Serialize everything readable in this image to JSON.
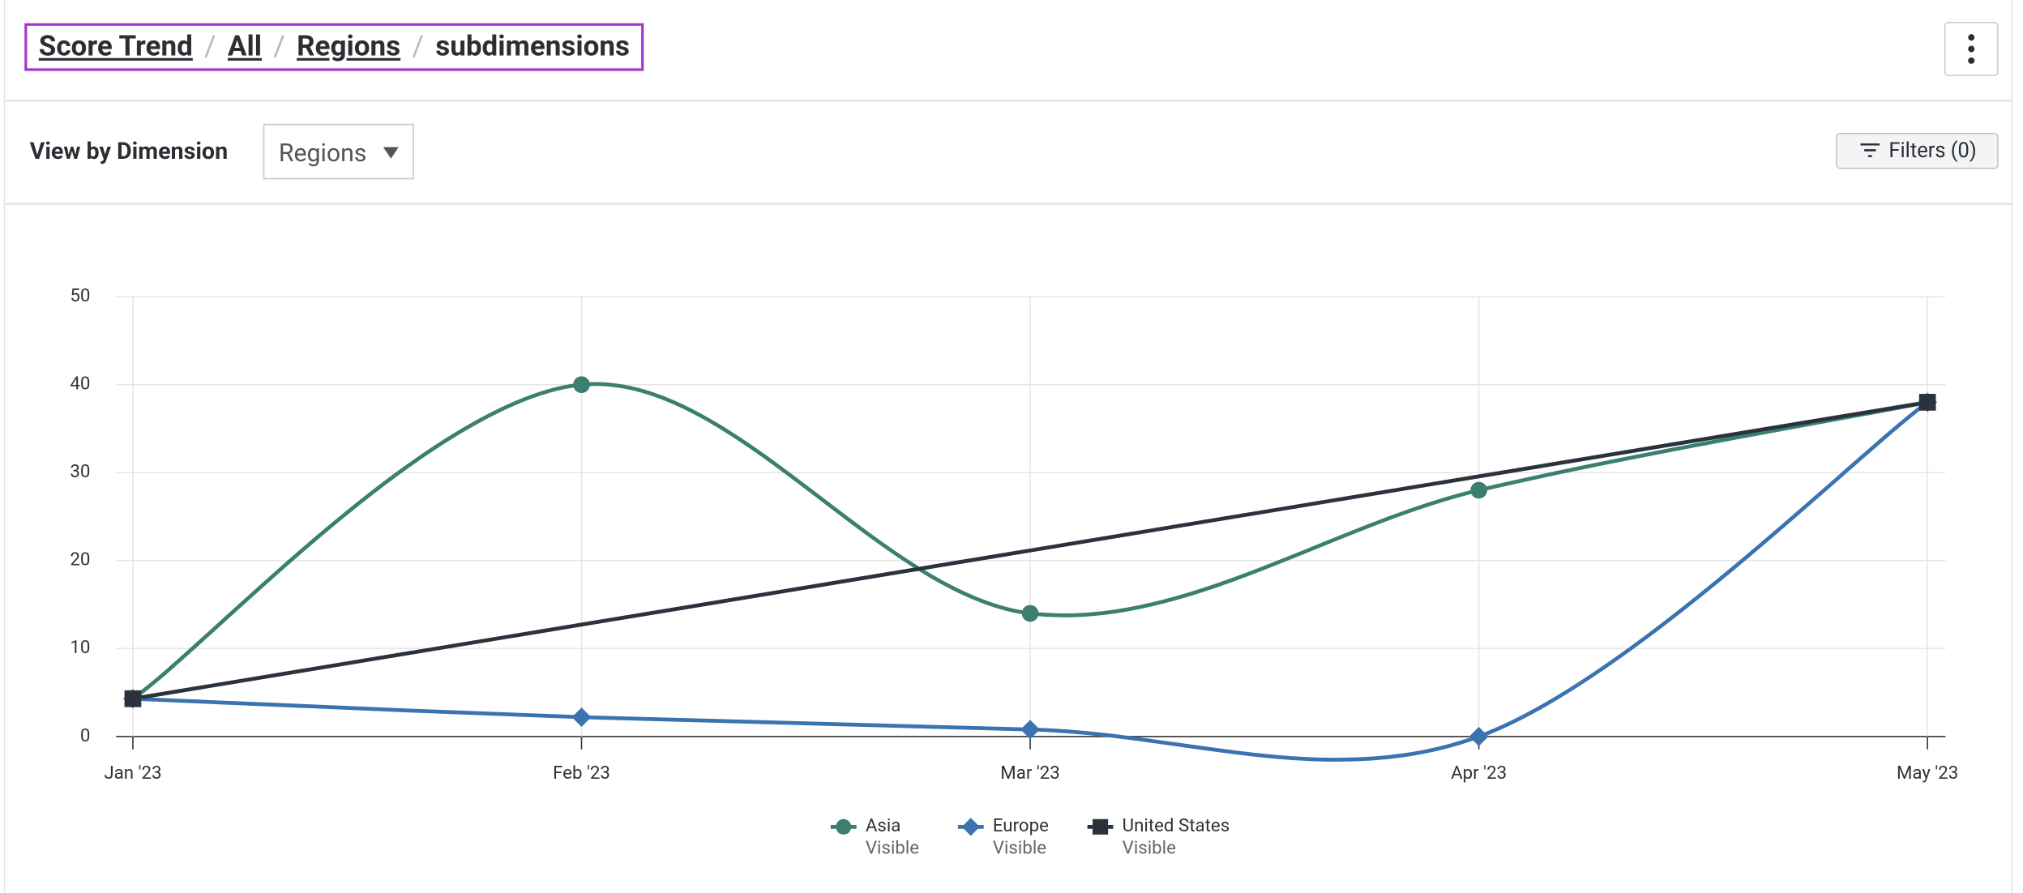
{
  "ui": {
    "breadcrumb": [
      "Score Trend",
      "All",
      "Regions",
      "subdimensions"
    ],
    "separator": "/",
    "view_label": "View by Dimension",
    "dimension": "Regions",
    "filters": "Filters (0)"
  },
  "chart_data": {
    "type": "line",
    "x": [
      "Jan '23",
      "Feb '23",
      "Mar '23",
      "Apr '23",
      "May '23"
    ],
    "ylim": [
      0,
      50
    ],
    "yticks": [
      0,
      10,
      20,
      30,
      40,
      50
    ],
    "grid": true,
    "smooth": true,
    "series": [
      {
        "name": "Asia",
        "status": "Visible",
        "color": "#3a7f6f",
        "marker": "circle",
        "values": [
          4.3,
          40,
          14,
          28,
          38
        ]
      },
      {
        "name": "Europe",
        "status": "Visible",
        "color": "#3b73b0",
        "marker": "diamond",
        "values": [
          4.3,
          2.2,
          0.8,
          0,
          38
        ]
      },
      {
        "name": "United States",
        "status": "Visible",
        "color": "#2a323c",
        "marker": "square",
        "values": [
          4.3,
          null,
          null,
          null,
          38
        ]
      }
    ]
  }
}
